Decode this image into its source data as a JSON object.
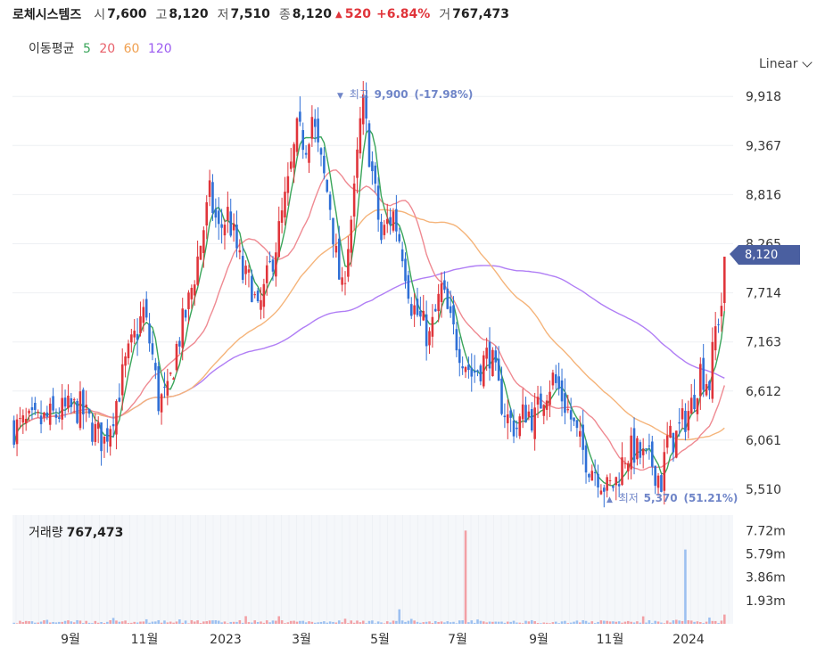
{
  "header": {
    "name": "로체시스템즈",
    "open_label": "시",
    "open": "7,600",
    "high_label": "고",
    "high": "8,120",
    "low_label": "저",
    "low": "7,510",
    "close_label": "종",
    "close": "8,120",
    "change_icon": "triangle-up-icon",
    "change": "520",
    "change_pct": "+6.84%",
    "volume_label": "거",
    "volume": "767,473"
  },
  "ma_legend": {
    "label": "이동평균",
    "items": [
      {
        "text": "5",
        "color": "#3aa55a"
      },
      {
        "text": "20",
        "color": "#e8606a"
      },
      {
        "text": "60",
        "color": "#f0a050"
      },
      {
        "text": "120",
        "color": "#9a5af0"
      }
    ]
  },
  "scale_selector": {
    "label": "Linear",
    "icon": "chevron-down-icon"
  },
  "chart_data": {
    "type": "candlestick",
    "y_ticks": [
      "9,918",
      "9,367",
      "8,816",
      "8,265",
      "7,714",
      "7,163",
      "6,612",
      "6,061",
      "5,510"
    ],
    "ylim": [
      5300,
      10050
    ],
    "x_ticks": [
      "9월",
      "11월",
      "2023",
      "3월",
      "5월",
      "7월",
      "9월",
      "11월",
      "2024"
    ],
    "last_price": "8,120",
    "max_annotation": {
      "label": "최고",
      "value": "9,900",
      "pct": "(-17.98%)",
      "icon": "triangle-down-icon"
    },
    "min_annotation": {
      "label": "최저",
      "value": "5,370",
      "pct": "(51.21%)",
      "icon": "triangle-up-icon"
    },
    "colors": {
      "up": "#e0343a",
      "down": "#2f6fd6",
      "ma5": "#3aa55a",
      "ma20": "#ef8a92",
      "ma60": "#f5b47a",
      "ma120": "#b07ef5",
      "grid": "#eef0f3",
      "badge": "#4a5fa0",
      "annot": "#6f85c8"
    },
    "price_path": [
      [
        0,
        6200
      ],
      [
        8,
        6250
      ],
      [
        16,
        6380
      ],
      [
        22,
        6420
      ],
      [
        27,
        6150
      ],
      [
        30,
        6050
      ],
      [
        34,
        6500
      ],
      [
        37,
        6900
      ],
      [
        40,
        7200
      ],
      [
        43,
        7500
      ],
      [
        46,
        7000
      ],
      [
        48,
        6500
      ],
      [
        51,
        6550
      ],
      [
        54,
        7100
      ],
      [
        58,
        7600
      ],
      [
        61,
        8100
      ],
      [
        65,
        8800
      ],
      [
        68,
        8400
      ],
      [
        71,
        8600
      ],
      [
        74,
        8200
      ],
      [
        76,
        7900
      ],
      [
        79,
        7800
      ],
      [
        81,
        7450
      ],
      [
        84,
        7850
      ],
      [
        88,
        8400
      ],
      [
        91,
        8900
      ],
      [
        94,
        9500
      ],
      [
        97,
        9400
      ],
      [
        99,
        9700
      ],
      [
        101,
        9300
      ],
      [
        103,
        9000
      ],
      [
        105,
        8700
      ],
      [
        107,
        8100
      ],
      [
        109,
        7700
      ],
      [
        111,
        8300
      ],
      [
        113,
        8800
      ],
      [
        115,
        9600
      ],
      [
        116,
        9800
      ],
      [
        118,
        9300
      ],
      [
        120,
        8800
      ],
      [
        122,
        8300
      ],
      [
        124,
        8500
      ],
      [
        126,
        8600
      ],
      [
        129,
        8200
      ],
      [
        132,
        7600
      ],
      [
        135,
        7400
      ],
      [
        138,
        7200
      ],
      [
        142,
        7750
      ],
      [
        145,
        7350
      ],
      [
        148,
        7100
      ],
      [
        152,
        6800
      ],
      [
        155,
        6900
      ],
      [
        158,
        7050
      ],
      [
        161,
        6600
      ],
      [
        164,
        6300
      ],
      [
        167,
        6200
      ],
      [
        170,
        6400
      ],
      [
        173,
        6300
      ],
      [
        176,
        6600
      ],
      [
        179,
        6750
      ],
      [
        182,
        6550
      ],
      [
        185,
        6300
      ],
      [
        188,
        6000
      ],
      [
        191,
        5800
      ],
      [
        194,
        5700
      ],
      [
        197,
        5500
      ],
      [
        200,
        5600
      ],
      [
        203,
        5900
      ],
      [
        206,
        5950
      ],
      [
        209,
        5850
      ],
      [
        212,
        5800
      ],
      [
        215,
        5600
      ],
      [
        217,
        6050
      ],
      [
        220,
        6100
      ],
      [
        222,
        6250
      ],
      [
        225,
        6450
      ],
      [
        228,
        6850
      ],
      [
        231,
        6700
      ],
      [
        233,
        7300
      ],
      [
        235,
        7600
      ],
      [
        236,
        8120
      ]
    ],
    "volume_ticks": [
      "7.72m",
      "5.79m",
      "3.86m",
      "1.93m"
    ],
    "volume_max": 9000000,
    "volume_spikes": [
      [
        150,
        7720000
      ],
      [
        223,
        6150000
      ],
      [
        128,
        1200000
      ]
    ]
  },
  "volume_panel": {
    "label": "거래량",
    "value": "767,473"
  }
}
